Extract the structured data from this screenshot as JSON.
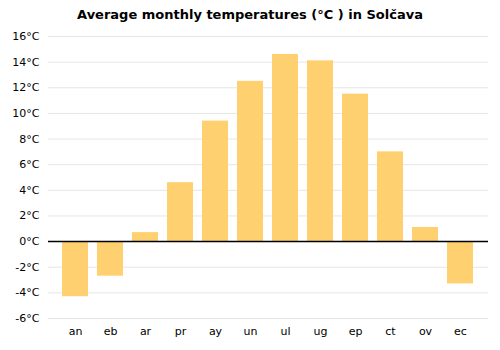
{
  "chart_data": {
    "type": "bar",
    "title": "Average monthly temperatures (°C ) in Solčava",
    "categories": [
      "an",
      "eb",
      "ar",
      "pr",
      "ay",
      "un",
      "ul",
      "ug",
      "ep",
      "ct",
      "ov",
      "ec"
    ],
    "values": [
      -4.3,
      -2.7,
      0.7,
      4.6,
      9.4,
      12.5,
      14.6,
      14.1,
      11.5,
      7.0,
      1.1,
      -3.3
    ],
    "color": "#FFD070",
    "ylim": [
      -6,
      16
    ],
    "yticks": [
      {
        "value": -6,
        "label": "-6°C"
      },
      {
        "value": -4,
        "label": "-4°C"
      },
      {
        "value": -2,
        "label": "-2°C"
      },
      {
        "value": 0,
        "label": "0°C"
      },
      {
        "value": 2,
        "label": "2°C"
      },
      {
        "value": 4,
        "label": "4°C"
      },
      {
        "value": 6,
        "label": "6°C"
      },
      {
        "value": 8,
        "label": "8°C"
      },
      {
        "value": 10,
        "label": "10°C"
      },
      {
        "value": 12,
        "label": "12°C"
      },
      {
        "value": 14,
        "label": "14°C"
      },
      {
        "value": 16,
        "label": "16°C"
      }
    ],
    "grid": true
  }
}
